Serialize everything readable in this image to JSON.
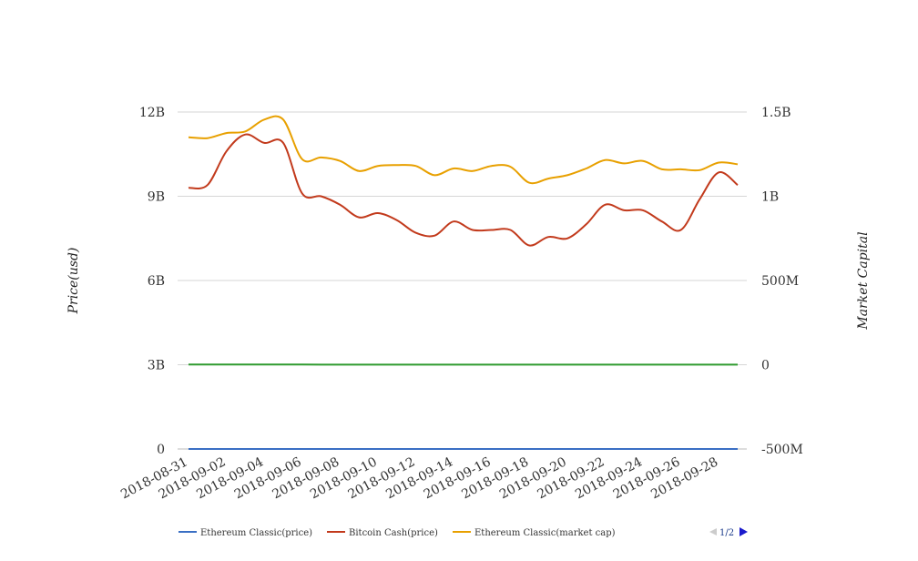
{
  "chart_data": {
    "type": "line",
    "left_axis": {
      "label": "Price(usd)",
      "ticks": [
        "0",
        "3B",
        "6B",
        "9B",
        "12B"
      ],
      "range": [
        0,
        12000000000
      ]
    },
    "right_axis": {
      "label": "Market Capital",
      "ticks": [
        "-500M",
        "0",
        "500M",
        "1B",
        "1.5B"
      ],
      "range": [
        -500000000,
        1500000000
      ]
    },
    "x_tick_labels": [
      "2018-08-31",
      "2018-09-02",
      "2018-09-04",
      "2018-09-06",
      "2018-09-08",
      "2018-09-10",
      "2018-09-12",
      "2018-09-14",
      "2018-09-16",
      "2018-09-18",
      "2018-09-20",
      "2018-09-22",
      "2018-09-24",
      "2018-09-26",
      "2018-09-28"
    ],
    "x": [
      "2018-08-31",
      "2018-09-01",
      "2018-09-02",
      "2018-09-03",
      "2018-09-04",
      "2018-09-05",
      "2018-09-06",
      "2018-09-07",
      "2018-09-08",
      "2018-09-09",
      "2018-09-10",
      "2018-09-11",
      "2018-09-12",
      "2018-09-13",
      "2018-09-14",
      "2018-09-15",
      "2018-09-16",
      "2018-09-17",
      "2018-09-18",
      "2018-09-19",
      "2018-09-20",
      "2018-09-21",
      "2018-09-22",
      "2018-09-23",
      "2018-09-24",
      "2018-09-25",
      "2018-09-26",
      "2018-09-27",
      "2018-09-28",
      "2018-09-29"
    ],
    "series": [
      {
        "name": "Ethereum Classic(price)",
        "axis": "left",
        "color": "#3a6fc4",
        "values": [
          13,
          13,
          13.5,
          13.2,
          13,
          12.8,
          12,
          11.8,
          11.6,
          11.5,
          11.5,
          11.3,
          11.2,
          11.1,
          11.4,
          11.2,
          11.3,
          11.3,
          11,
          11.2,
          11.1,
          11.3,
          11.5,
          11.4,
          11.3,
          11.2,
          11,
          11.3,
          11.1,
          11
        ]
      },
      {
        "name": "Bitcoin Cash(price)",
        "axis": "left",
        "color": "#c23a1c",
        "values": [
          9300000000,
          9400000000,
          10600000000,
          11200000000,
          10900000000,
          10900000000,
          9100000000,
          9000000000,
          8700000000,
          8250000000,
          8400000000,
          8150000000,
          7700000000,
          7600000000,
          8100000000,
          7800000000,
          7800000000,
          7800000000,
          7250000000,
          7550000000,
          7500000000,
          8000000000,
          8700000000,
          8500000000,
          8500000000,
          8100000000,
          7800000000,
          8900000000,
          9850000000,
          9400000000
        ]
      },
      {
        "name": "Ethereum Classic(market cap)",
        "axis": "right",
        "color": "#e8a000",
        "values": [
          1350000000,
          1345000000,
          1375000000,
          1385000000,
          1455000000,
          1455000000,
          1220000000,
          1230000000,
          1210000000,
          1150000000,
          1180000000,
          1185000000,
          1180000000,
          1125000000,
          1165000000,
          1150000000,
          1180000000,
          1175000000,
          1080000000,
          1105000000,
          1125000000,
          1165000000,
          1215000000,
          1195000000,
          1210000000,
          1160000000,
          1160000000,
          1155000000,
          1200000000,
          1190000000
        ]
      },
      {
        "name": "",
        "axis": "right",
        "color": "#2e9a2e",
        "values": [
          1000000,
          1500000,
          1500000,
          1200000,
          1800000,
          1500000,
          1000000,
          800000,
          700000,
          600000,
          600000,
          600000,
          500000,
          500000,
          500000,
          500000,
          500000,
          500000,
          400000,
          400000,
          400000,
          500000,
          500000,
          500000,
          500000,
          400000,
          400000,
          500000,
          500000,
          400000
        ]
      }
    ],
    "legend": {
      "placement": "bottom",
      "items": [
        "Ethereum Classic(price)",
        "Bitcoin Cash(price)",
        "Ethereum Classic(market cap)"
      ],
      "pager": "1/2"
    },
    "grid": true
  }
}
